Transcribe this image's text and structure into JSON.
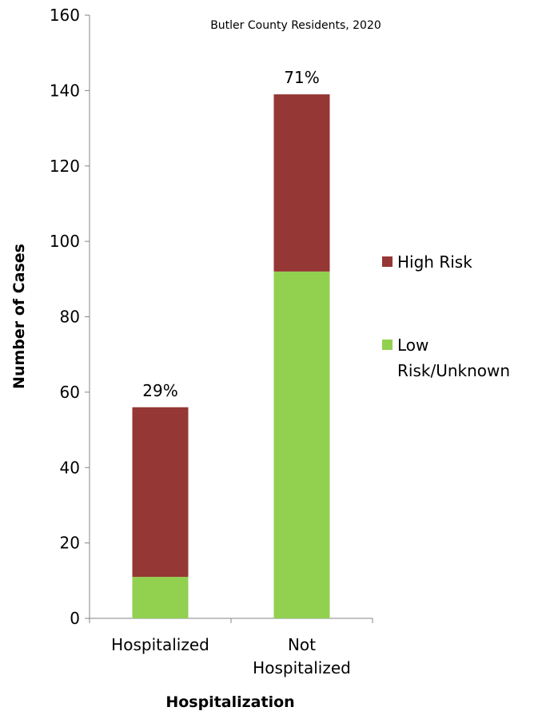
{
  "chart_data": {
    "type": "bar",
    "stacked": true,
    "subtitle": "Butler County Residents, 2020",
    "xlabel": "Hospitalization",
    "ylabel": "Number of Cases",
    "ylim": [
      0,
      160
    ],
    "yticks": [
      0,
      20,
      40,
      60,
      80,
      100,
      120,
      140,
      160
    ],
    "categories": [
      [
        "Hospitalized"
      ],
      [
        "Not",
        "Hospitalized"
      ]
    ],
    "series": [
      {
        "name": "Low Risk/Unknown",
        "legend_lines": [
          "Low",
          "Risk/Unknown"
        ],
        "color": "#92d050",
        "values": [
          11,
          92
        ]
      },
      {
        "name": "High Risk",
        "legend_lines": [
          "High Risk"
        ],
        "color": "#953735",
        "values": [
          45,
          47
        ]
      }
    ],
    "data_labels": [
      "29%",
      "71%"
    ],
    "legend": {
      "position": "right",
      "order": [
        "High Risk",
        "Low Risk/Unknown"
      ]
    },
    "grid": false
  }
}
